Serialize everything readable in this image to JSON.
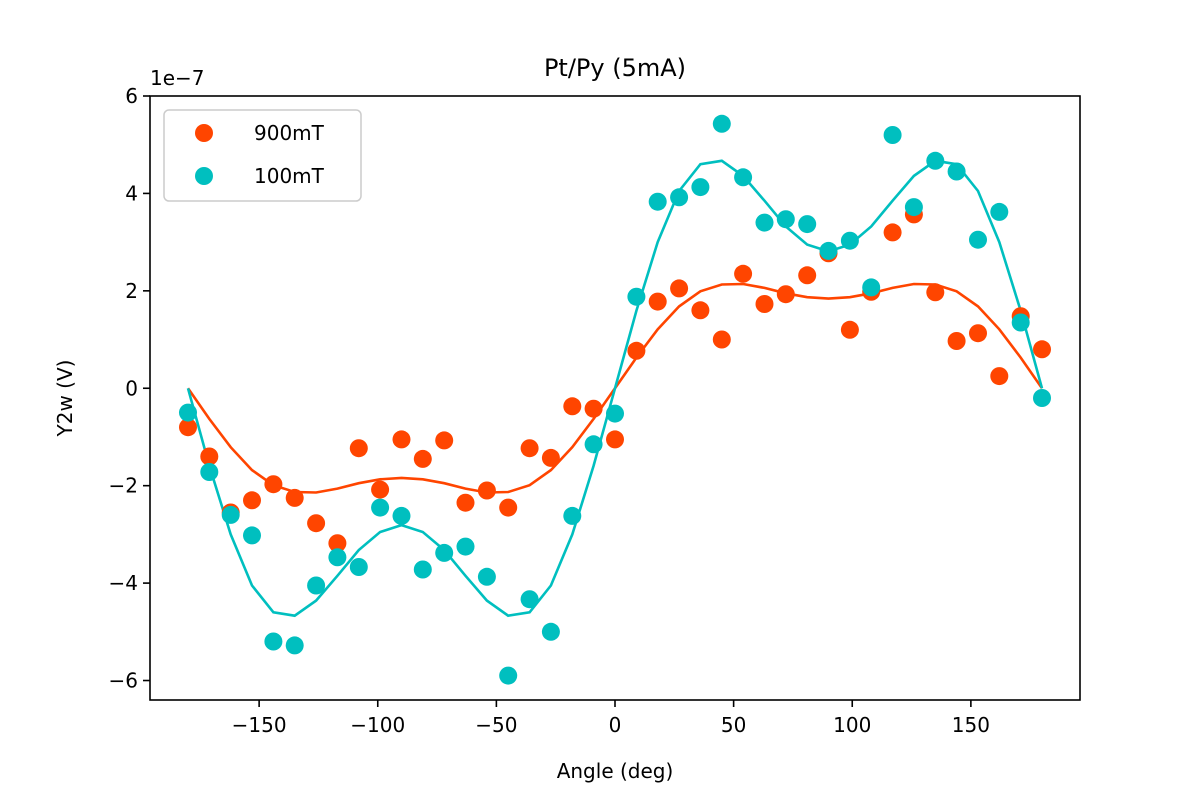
{
  "chart_data": {
    "type": "scatter",
    "title": "Pt/Py (5mA)",
    "xlabel": "Angle (deg)",
    "ylabel": "Y2w (V)",
    "y_offset_label": "1e−7",
    "y_scale": 1e-07,
    "xlim": [
      -196,
      196
    ],
    "ylim": [
      -6.4,
      6.0
    ],
    "xticks": [
      -150,
      -100,
      -50,
      0,
      50,
      100,
      150
    ],
    "xtick_labels": [
      "−150",
      "−100",
      "−50",
      "0",
      "50",
      "100",
      "150"
    ],
    "yticks": [
      -6,
      -4,
      -2,
      0,
      2,
      4,
      6
    ],
    "ytick_labels": [
      "−6",
      "−4",
      "−2",
      "0",
      "2",
      "4",
      "6"
    ],
    "grid": false,
    "legend_position": "upper-left",
    "series": [
      {
        "name": "900mT",
        "color": "#ff4500",
        "x": [
          -180,
          -171,
          -162,
          -153,
          -144,
          -135,
          -126,
          -117,
          -108,
          -99,
          -90,
          -81,
          -72,
          -63,
          -54,
          -45,
          -36,
          -27,
          -18,
          -9,
          0,
          9,
          18,
          27,
          36,
          45,
          54,
          63,
          72,
          81,
          90,
          99,
          108,
          117,
          126,
          135,
          144,
          153,
          162,
          171,
          180
        ],
        "points": [
          -0.8,
          -1.4,
          -2.55,
          -2.3,
          -1.97,
          -2.25,
          -2.77,
          -3.18,
          -1.23,
          -2.08,
          -1.05,
          -1.45,
          -1.07,
          -2.35,
          -2.1,
          -2.45,
          -1.23,
          -1.43,
          -0.37,
          -0.42,
          -1.05,
          0.77,
          1.78,
          2.05,
          1.6,
          1.0,
          2.35,
          1.73,
          1.93,
          2.32,
          2.77,
          1.2,
          1.98,
          3.2,
          3.57,
          1.97,
          0.97,
          1.13,
          0.25,
          1.48,
          0.8
        ],
        "fit": [
          0.0,
          -0.63,
          -1.21,
          -1.68,
          -1.99,
          -2.13,
          -2.14,
          -2.06,
          -1.95,
          -1.87,
          -1.84,
          -1.87,
          -1.95,
          -2.06,
          -2.14,
          -2.13,
          -1.99,
          -1.68,
          -1.21,
          -0.63,
          0.0,
          0.63,
          1.21,
          1.68,
          1.99,
          2.13,
          2.14,
          2.06,
          1.95,
          1.87,
          1.84,
          1.87,
          1.95,
          2.06,
          2.14,
          2.13,
          1.99,
          1.68,
          1.21,
          0.63,
          0.0
        ]
      },
      {
        "name": "100mT",
        "color": "#00bfbf",
        "x": [
          -180,
          -171,
          -162,
          -153,
          -144,
          -135,
          -126,
          -117,
          -108,
          -99,
          -90,
          -81,
          -72,
          -63,
          -54,
          -45,
          -36,
          -27,
          -18,
          -9,
          0,
          9,
          18,
          27,
          36,
          45,
          54,
          63,
          72,
          81,
          90,
          99,
          108,
          117,
          126,
          135,
          144,
          153,
          162,
          171,
          180
        ],
        "points": [
          -0.5,
          -1.72,
          -2.6,
          -3.02,
          -5.2,
          -5.28,
          -4.05,
          -3.47,
          -3.67,
          -2.45,
          -2.62,
          -3.72,
          -3.38,
          -3.25,
          -3.87,
          -5.9,
          -4.33,
          -5.0,
          -2.62,
          -1.15,
          -0.52,
          1.88,
          3.83,
          3.92,
          4.13,
          5.43,
          4.33,
          3.4,
          3.47,
          3.37,
          2.82,
          3.03,
          2.07,
          5.2,
          3.72,
          4.67,
          4.45,
          3.05,
          3.62,
          1.35,
          -0.2
        ],
        "fit": [
          0.0,
          -1.59,
          -3.0,
          -4.05,
          -4.6,
          -4.67,
          -4.36,
          -3.85,
          -3.32,
          -2.95,
          -2.81,
          -2.95,
          -3.32,
          -3.85,
          -4.36,
          -4.67,
          -4.6,
          -4.05,
          -3.0,
          -1.59,
          0.0,
          1.59,
          3.0,
          4.05,
          4.6,
          4.67,
          4.36,
          3.85,
          3.32,
          2.95,
          2.81,
          2.95,
          3.32,
          3.85,
          4.36,
          4.67,
          4.6,
          4.05,
          3.0,
          1.59,
          0.0
        ]
      }
    ]
  }
}
